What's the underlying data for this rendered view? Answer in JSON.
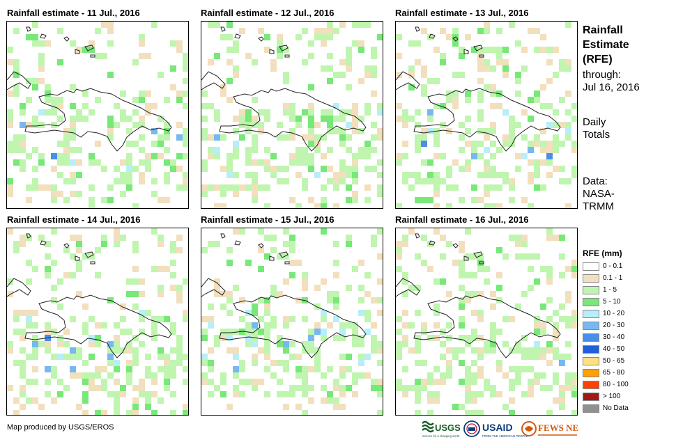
{
  "panels": [
    {
      "title": "Rainfall estimate - 11 Jul., 2016"
    },
    {
      "title": "Rainfall estimate - 12 Jul., 2016"
    },
    {
      "title": "Rainfall estimate - 13 Jul., 2016"
    },
    {
      "title": "Rainfall estimate - 14 Jul., 2016"
    },
    {
      "title": "Rainfall estimate - 15 Jul., 2016"
    },
    {
      "title": "Rainfall estimate - 16 Jul., 2016"
    }
  ],
  "sidebar": {
    "title_line1": "Rainfall",
    "title_line2": "Estimate",
    "title_line3": "(RFE)",
    "through_label": "through:",
    "through_date": "Jul 16, 2016",
    "totals_line1": "Daily",
    "totals_line2": "Totals",
    "data_label": "Data:",
    "data_source_line1": "NASA-",
    "data_source_line2": "TRMM"
  },
  "legend": {
    "title": "RFE (mm)",
    "items": [
      {
        "label": "0 - 0.1",
        "color": "#ffffff"
      },
      {
        "label": "0.1 - 1",
        "color": "#f2dfbd"
      },
      {
        "label": "1 - 5",
        "color": "#c0f5b0"
      },
      {
        "label": "5 - 10",
        "color": "#78e878"
      },
      {
        "label": "10 - 20",
        "color": "#b8eef8"
      },
      {
        "label": "20 - 30",
        "color": "#78b8f0"
      },
      {
        "label": "30 - 40",
        "color": "#4a8ee8"
      },
      {
        "label": "40 - 50",
        "color": "#2060d8"
      },
      {
        "label": "50 - 65",
        "color": "#ffe080"
      },
      {
        "label": "65 - 80",
        "color": "#ffa000"
      },
      {
        "label": "80 - 100",
        "color": "#ff4000"
      },
      {
        "label": "> 100",
        "color": "#a01818"
      },
      {
        "label": "No Data",
        "color": "#909090"
      }
    ]
  },
  "footer": {
    "credit": "Map produced by USGS/EROS",
    "logo_usgs": "USGS",
    "logo_usgs_tagline": "science for a changing world",
    "logo_usaid": "USAID",
    "logo_usaid_tagline": "FROM THE AMERICAN PEOPLE",
    "logo_fews": "FEWS NET"
  }
}
